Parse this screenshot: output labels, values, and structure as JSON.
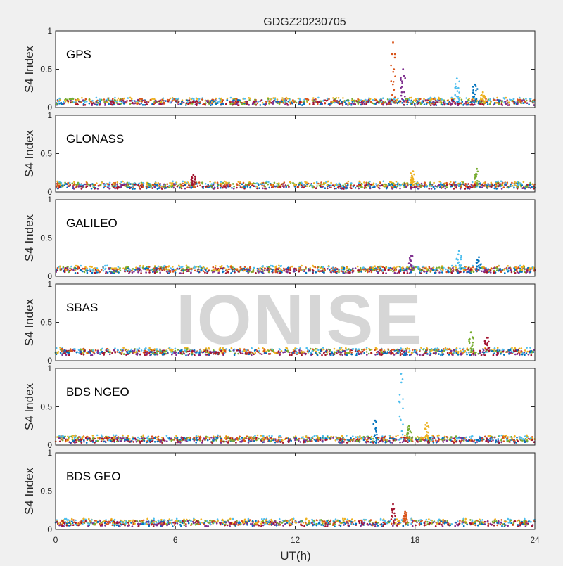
{
  "figure": {
    "title": "GDGZ20230705",
    "xlabel": "UT(h)",
    "watermark": "IONISE"
  },
  "chart_data": [
    {
      "type": "scatter",
      "panel_label": "GPS",
      "ylabel": "S4 Index",
      "xlim": [
        0,
        24
      ],
      "ylim": [
        0,
        1
      ],
      "xticks": [
        0,
        6,
        12,
        18,
        24
      ],
      "yticks": [
        0,
        0.5,
        1
      ],
      "baseline_s4": 0.08,
      "spikes": [
        {
          "x": 16.9,
          "peak": 0.85
        },
        {
          "x": 17.4,
          "peak": 0.5
        },
        {
          "x": 20.1,
          "peak": 0.38
        },
        {
          "x": 21.0,
          "peak": 0.3
        },
        {
          "x": 21.4,
          "peak": 0.2
        }
      ]
    },
    {
      "type": "scatter",
      "panel_label": "GLONASS",
      "ylabel": "S4 Index",
      "xlim": [
        0,
        24
      ],
      "ylim": [
        0,
        1
      ],
      "xticks": [
        0,
        6,
        12,
        18,
        24
      ],
      "yticks": [
        0,
        0.5,
        1
      ],
      "baseline_s4": 0.09,
      "spikes": [
        {
          "x": 17.9,
          "peak": 0.27
        },
        {
          "x": 21.1,
          "peak": 0.3
        },
        {
          "x": 6.9,
          "peak": 0.22
        }
      ]
    },
    {
      "type": "scatter",
      "panel_label": "GALILEO",
      "ylabel": "S4 Index",
      "xlim": [
        0,
        24
      ],
      "ylim": [
        0,
        1
      ],
      "xticks": [
        0,
        6,
        12,
        18,
        24
      ],
      "yticks": [
        0,
        0.5,
        1
      ],
      "baseline_s4": 0.09,
      "spikes": [
        {
          "x": 17.8,
          "peak": 0.27
        },
        {
          "x": 20.2,
          "peak": 0.33
        },
        {
          "x": 21.2,
          "peak": 0.25
        }
      ]
    },
    {
      "type": "scatter",
      "panel_label": "SBAS",
      "ylabel": "S4 Index",
      "xlim": [
        0,
        24
      ],
      "ylim": [
        0,
        1
      ],
      "xticks": [
        0,
        6,
        12,
        18,
        24
      ],
      "yticks": [
        0,
        0.5,
        1
      ],
      "baseline_s4": 0.12,
      "spikes": [
        {
          "x": 20.8,
          "peak": 0.37
        },
        {
          "x": 21.6,
          "peak": 0.3
        }
      ]
    },
    {
      "type": "scatter",
      "panel_label": "BDS NGEO",
      "ylabel": "S4 Index",
      "xlim": [
        0,
        24
      ],
      "ylim": [
        0,
        1
      ],
      "xticks": [
        0,
        6,
        12,
        18,
        24
      ],
      "yticks": [
        0,
        0.5,
        1
      ],
      "baseline_s4": 0.08,
      "spikes": [
        {
          "x": 17.3,
          "peak": 0.93
        },
        {
          "x": 16.0,
          "peak": 0.32
        },
        {
          "x": 18.6,
          "peak": 0.29
        },
        {
          "x": 17.7,
          "peak": 0.25
        }
      ]
    },
    {
      "type": "scatter",
      "panel_label": "BDS GEO",
      "ylabel": "S4 Index",
      "xlim": [
        0,
        24
      ],
      "ylim": [
        0,
        1
      ],
      "xticks": [
        0,
        6,
        12,
        18,
        24
      ],
      "yticks": [
        0,
        0.5,
        1
      ],
      "baseline_s4": 0.09,
      "spikes": [
        {
          "x": 16.9,
          "peak": 0.33
        },
        {
          "x": 17.5,
          "peak": 0.23
        }
      ]
    }
  ],
  "colors": {
    "series": [
      "#0072bd",
      "#d95319",
      "#edb120",
      "#7e2f8e",
      "#77ac30",
      "#4dbeee",
      "#a2142f"
    ],
    "panel_bg": "#ffffff",
    "axis": "#262626"
  }
}
